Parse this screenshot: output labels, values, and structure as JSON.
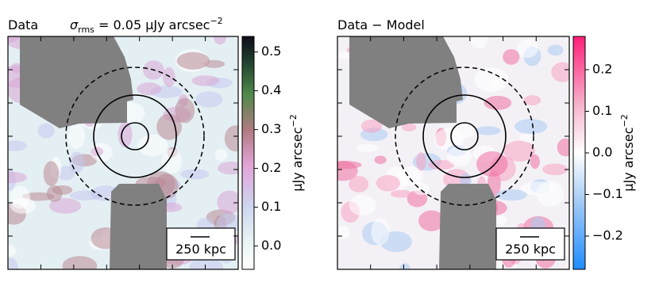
{
  "chart_data": [
    {
      "type": "image",
      "title": "Data",
      "annotation": {
        "symbol": "σ",
        "subscript": "rms",
        "text": " = 0.05 μJy arcsec",
        "superscript": "−2"
      },
      "colorbar_label": {
        "text": "μJy arcsec",
        "superscript": "−2"
      },
      "clim": [
        -0.06,
        0.54
      ],
      "cticks": [
        {
          "value": 0,
          "label": "0.0"
        },
        0.1,
        0.2,
        0.3,
        0.4,
        0.5
      ],
      "scale_label": "250 kpc"
    },
    {
      "type": "image",
      "title": "Data − Model",
      "colorbar_label": {
        "text": "μJy arcsec",
        "superscript": "−2"
      },
      "clim": [
        -0.28,
        0.28
      ],
      "cticks": [
        {
          "value": -0.2,
          "label": "−0.2"
        },
        {
          "value": -0.1,
          "label": "−0.1"
        },
        {
          "value": 0,
          "label": "0.0"
        },
        0.1,
        0.2
      ],
      "scale_label": "250 kpc"
    }
  ]
}
